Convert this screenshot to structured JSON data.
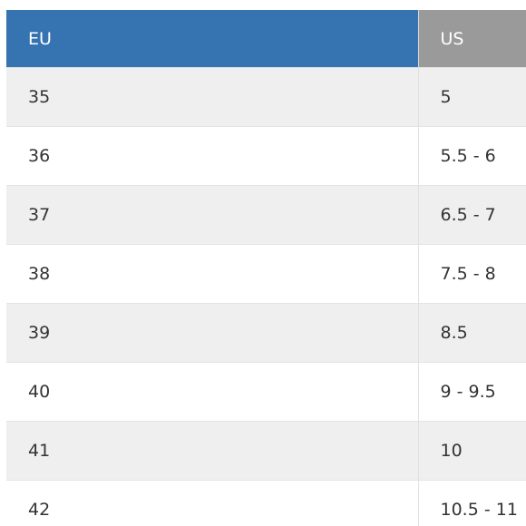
{
  "table": {
    "headers": [
      "EU",
      "US"
    ],
    "rows": [
      [
        "35",
        "5"
      ],
      [
        "36",
        "5.5 - 6"
      ],
      [
        "37",
        "6.5 - 7"
      ],
      [
        "38",
        "7.5 - 8"
      ],
      [
        "39",
        "8.5"
      ],
      [
        "40",
        "9 - 9.5"
      ],
      [
        "41",
        "10"
      ],
      [
        "42",
        "10.5 - 11"
      ]
    ]
  },
  "colors": {
    "eu_header": "#3673b1",
    "us_header": "#9a9a9a",
    "stripe": "#efefef"
  }
}
